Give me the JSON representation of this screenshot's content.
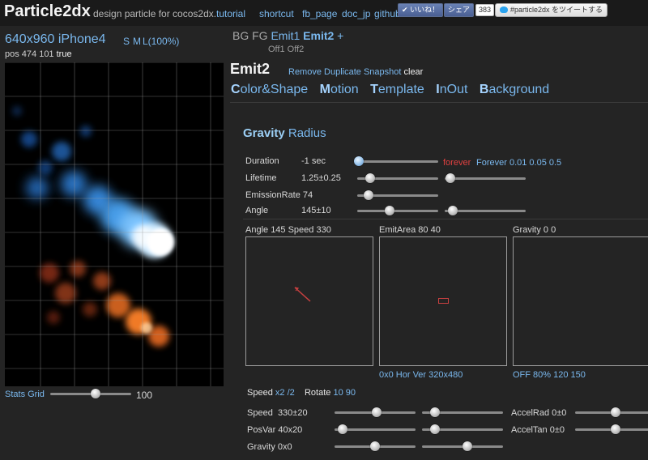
{
  "header": {
    "title": "Particle2dx",
    "subtitle": "design particle for cocos2dx.",
    "links": [
      "tutorial",
      "shortcut",
      "fb_page",
      "doc_jp",
      "github"
    ],
    "like_label": "いいね！",
    "share_label": "シェア",
    "share_count": "383",
    "tweet_label": "#particle2dx をツイートする"
  },
  "device": {
    "label": "640x960 iPhone4",
    "sizes": [
      "S",
      "M",
      "L(100%)"
    ],
    "pos_text": "pos 474 101",
    "pos_flag": "true",
    "stats_grid_label": "Stats Grid",
    "grid_value": "100",
    "grid_slider_value": 0.56
  },
  "emit_bar": {
    "bg": "BG",
    "fg": "FG",
    "emit1": "Emit1",
    "emit2": "Emit2",
    "plus": "+",
    "off1": "Off1",
    "off2": "Off2"
  },
  "emitter": {
    "title": "Emit2",
    "actions": [
      "Remove",
      "Duplicate",
      "Snapshot"
    ],
    "clear": "clear"
  },
  "tabs": [
    {
      "initial": "C",
      "rest": "olor&Shape"
    },
    {
      "initial": "M",
      "rest": "otion"
    },
    {
      "initial": "T",
      "rest": "emplate"
    },
    {
      "initial": "I",
      "rest": "nOut"
    },
    {
      "initial": "B",
      "rest": "ackground"
    }
  ],
  "mode": {
    "gravity": "Gravity",
    "radius": "Radius"
  },
  "params": {
    "duration_label": "Duration",
    "duration_value": "-1 sec",
    "duration_forever_red": "forever",
    "duration_presets": "Forever 0.01 0.05 0.5",
    "duration_slider": 0.02,
    "lifetime_label": "Lifetime",
    "lifetime_value": "1.25±0.25",
    "lifetime_slider_a": 0.16,
    "lifetime_slider_b": 0.07,
    "emission_label": "EmissionRate",
    "emission_value": "74",
    "emission_slider": 0.14,
    "angle_label": "Angle",
    "angle_value": "145±10",
    "angle_slider_a": 0.4,
    "angle_slider_b": 0.1
  },
  "panels": [
    {
      "title": "Angle 145 Speed 330",
      "footer": ""
    },
    {
      "title": "EmitArea 80 40",
      "footer": "0x0 Hor Ver 320x480"
    },
    {
      "title": "Gravity 0 0",
      "footer": "OFF 80% 120 150"
    }
  ],
  "speed_row": {
    "speed_label": "Speed",
    "speed_x2": "x2",
    "speed_div2": "/2",
    "rotate_label": "Rotate",
    "rotate_vals": "10 90"
  },
  "bottom_params": {
    "speed": {
      "label": "Speed",
      "value": "330±20",
      "slider_a": 0.52,
      "slider_b": 0.16
    },
    "posvar": {
      "label": "PosVar",
      "value": "40x20",
      "slider_a": 0.1,
      "slider_b": 0.16
    },
    "gravity": {
      "label": "Gravity",
      "value": "0x0",
      "slider_a": 0.5,
      "slider_b": 0.56
    },
    "accelrad": {
      "label": "AccelRad",
      "value": "0±0",
      "slider": 0.5
    },
    "acceltan": {
      "label": "AccelTan",
      "value": "0±0",
      "slider": 0.5
    }
  }
}
